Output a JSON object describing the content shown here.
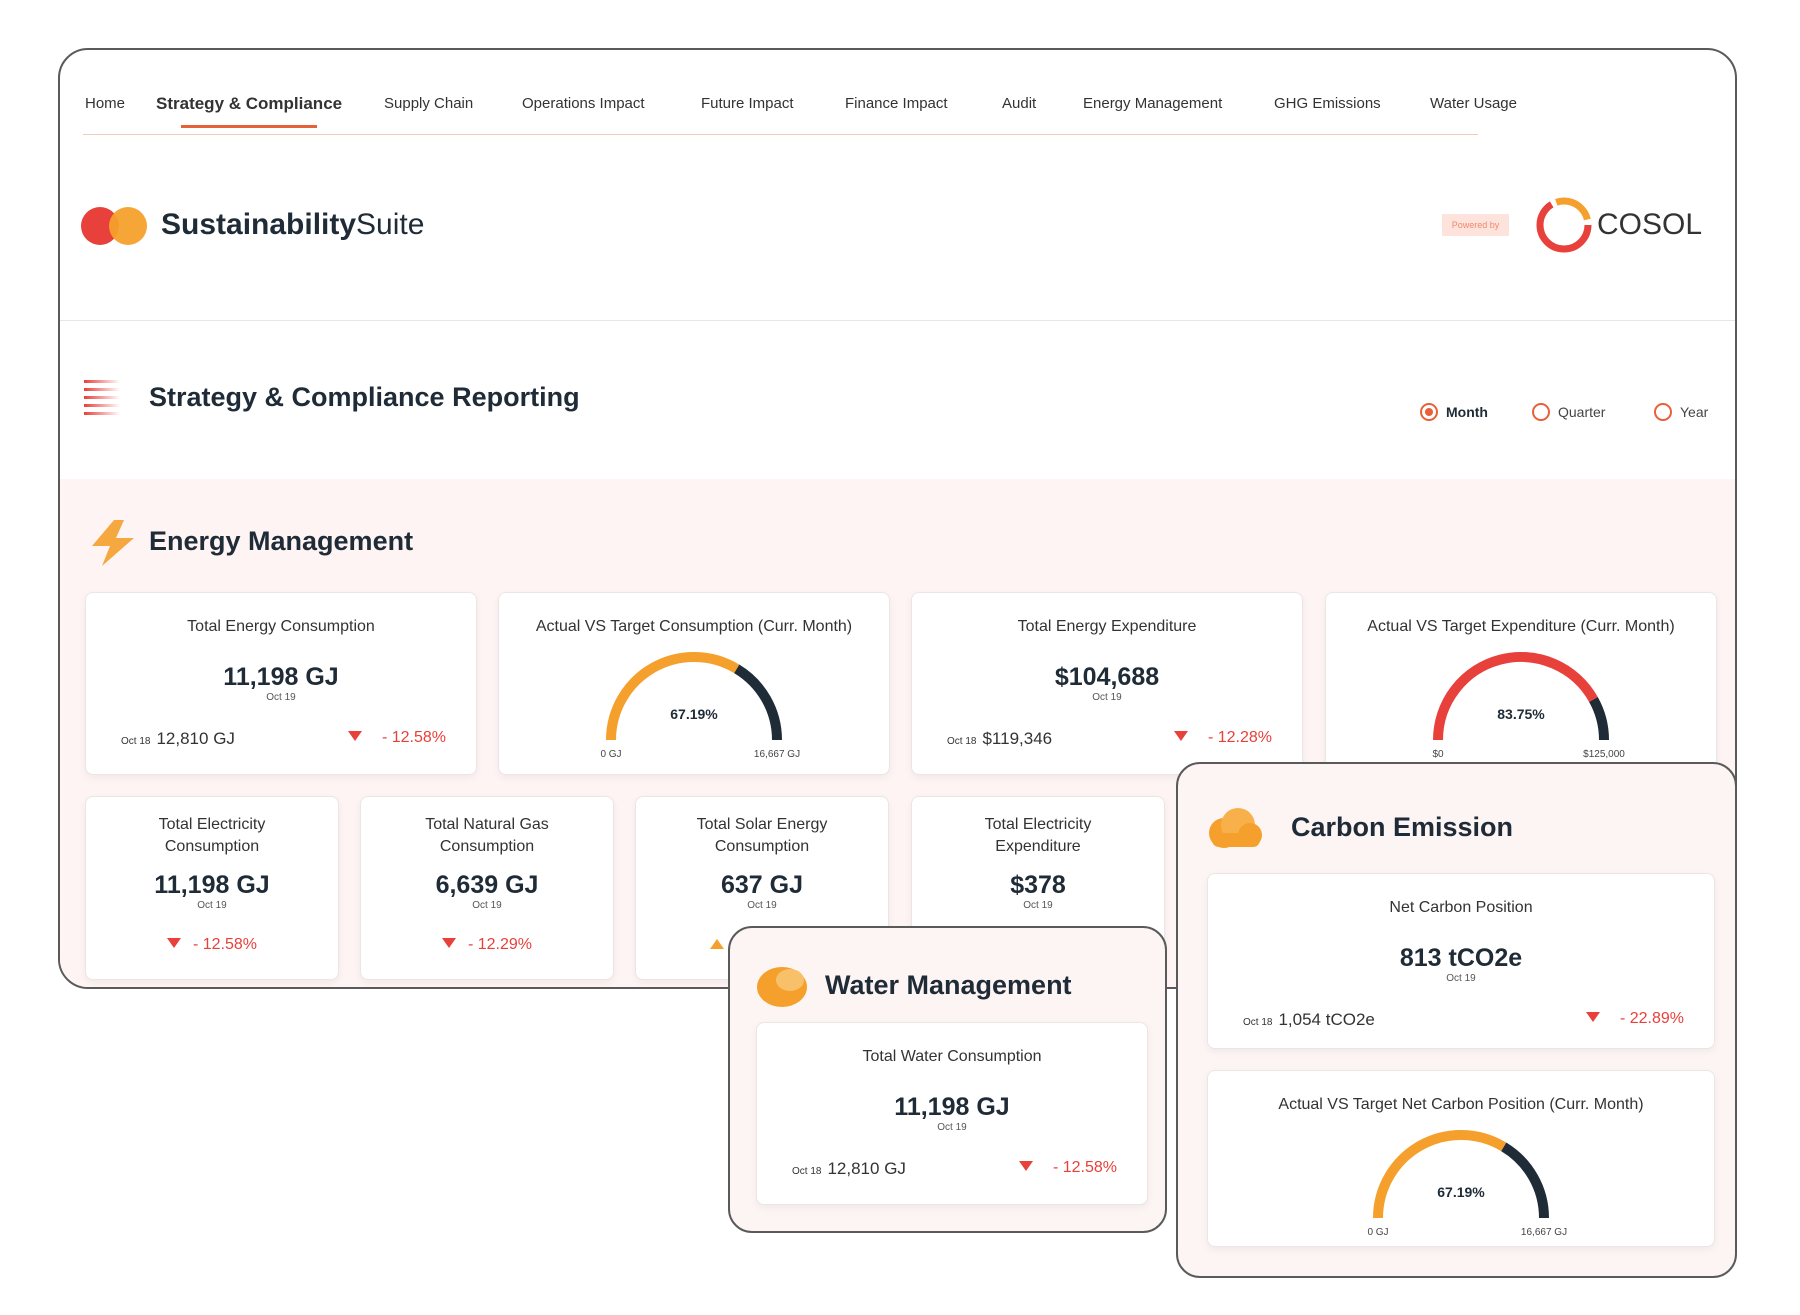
{
  "nav": {
    "items": [
      "Home",
      "Strategy & Compliance",
      "Supply Chain",
      "Operations Impact",
      "Future Impact",
      "Finance Impact",
      "Audit",
      "Energy Management",
      "GHG Emissions",
      "Water Usage"
    ],
    "active": 1
  },
  "brand": {
    "name_bold": "Sustainability",
    "name_light": "Suite",
    "powered_by": "Powered by",
    "partner": "COSOL"
  },
  "report": {
    "title": "Strategy & Compliance Reporting",
    "periods": [
      "Month",
      "Quarter",
      "Year"
    ],
    "selected": 0
  },
  "energy": {
    "title": "Energy Management",
    "stat_cards": [
      {
        "title": "Total Energy Consumption",
        "value": "11,198 GJ",
        "date": "Oct 19",
        "prev_date": "Oct 18",
        "prev_value": "12,810 GJ",
        "change": "- 12.58%"
      },
      {
        "title": "Total Energy Expenditure",
        "value": "$104,688",
        "date": "Oct 19",
        "prev_date": "Oct 18",
        "prev_value": "$119,346",
        "change": "- 12.28%"
      }
    ],
    "gauges": [
      {
        "title": "Actual VS Target Consumption (Curr. Month)",
        "percent": 67.19,
        "label": "67.19%",
        "min_label": "0 GJ",
        "max_label": "16,667 GJ",
        "color": "#f5a02c"
      },
      {
        "title": "Actual VS Target Expenditure (Curr. Month)",
        "percent": 83.75,
        "label": "83.75%",
        "min_label": "$0",
        "max_label": "$125,000",
        "color": "#e8403a"
      }
    ],
    "small_cards": [
      {
        "title": "Total Electricity Consumption",
        "value": "11,198 GJ",
        "date": "Oct 19",
        "change": "- 12.58%"
      },
      {
        "title": "Total Natural Gas Consumption",
        "value": "6,639 GJ",
        "date": "Oct 19",
        "change": "- 12.29%"
      },
      {
        "title": "Total Solar Energy Consumption",
        "value": "637 GJ",
        "date": "Oct 19"
      },
      {
        "title": "Total Electricity Expenditure",
        "value": "$378",
        "date": "Oct 19"
      }
    ]
  },
  "water": {
    "title": "Water Management",
    "card": {
      "title": "Total Water Consumption",
      "value": "11,198 GJ",
      "date": "Oct 19",
      "prev_date": "Oct 18",
      "prev_value": "12,810 GJ",
      "change": "- 12.58%"
    }
  },
  "carbon": {
    "title": "Carbon Emission",
    "card": {
      "title": "Net Carbon Position",
      "value": "813 tCO2e",
      "date": "Oct 19",
      "prev_date": "Oct 18",
      "prev_value": "1,054 tCO2e",
      "change": "- 22.89%"
    },
    "gauge": {
      "title": "Actual VS Target Net Carbon Position (Curr. Month)",
      "percent": 67.19,
      "label": "67.19%",
      "min_label": "0 GJ",
      "max_label": "16,667 GJ",
      "color": "#f5a02c"
    }
  }
}
